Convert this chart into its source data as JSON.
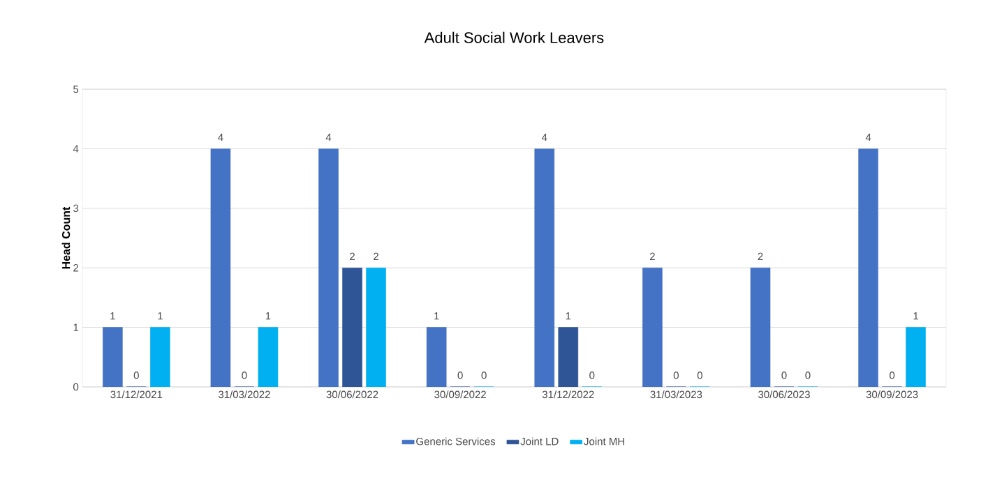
{
  "chart_data": {
    "type": "bar",
    "title": "Adult Social Work Leavers",
    "ylabel": "Head Count",
    "categories": [
      "31/12/2021",
      "31/03/2022",
      "30/06/2022",
      "30/09/2022",
      "31/12/2022",
      "31/03/2023",
      "30/06/2023",
      "30/09/2023"
    ],
    "series": [
      {
        "name": "Generic Services",
        "color": "#4472c4",
        "values": [
          1,
          4,
          4,
          1,
          4,
          2,
          2,
          4
        ]
      },
      {
        "name": "Joint LD",
        "color": "#2f5597",
        "values": [
          0,
          0,
          2,
          0,
          1,
          0,
          0,
          0
        ]
      },
      {
        "name": "Joint MH",
        "color": "#00b0f0",
        "values": [
          1,
          1,
          2,
          0,
          0,
          0,
          0,
          1
        ]
      }
    ],
    "ylim": [
      0,
      5
    ],
    "yticks": [
      0,
      1,
      2,
      3,
      4,
      5
    ],
    "grid": "y",
    "legend": "bottom",
    "data_labels": true
  }
}
